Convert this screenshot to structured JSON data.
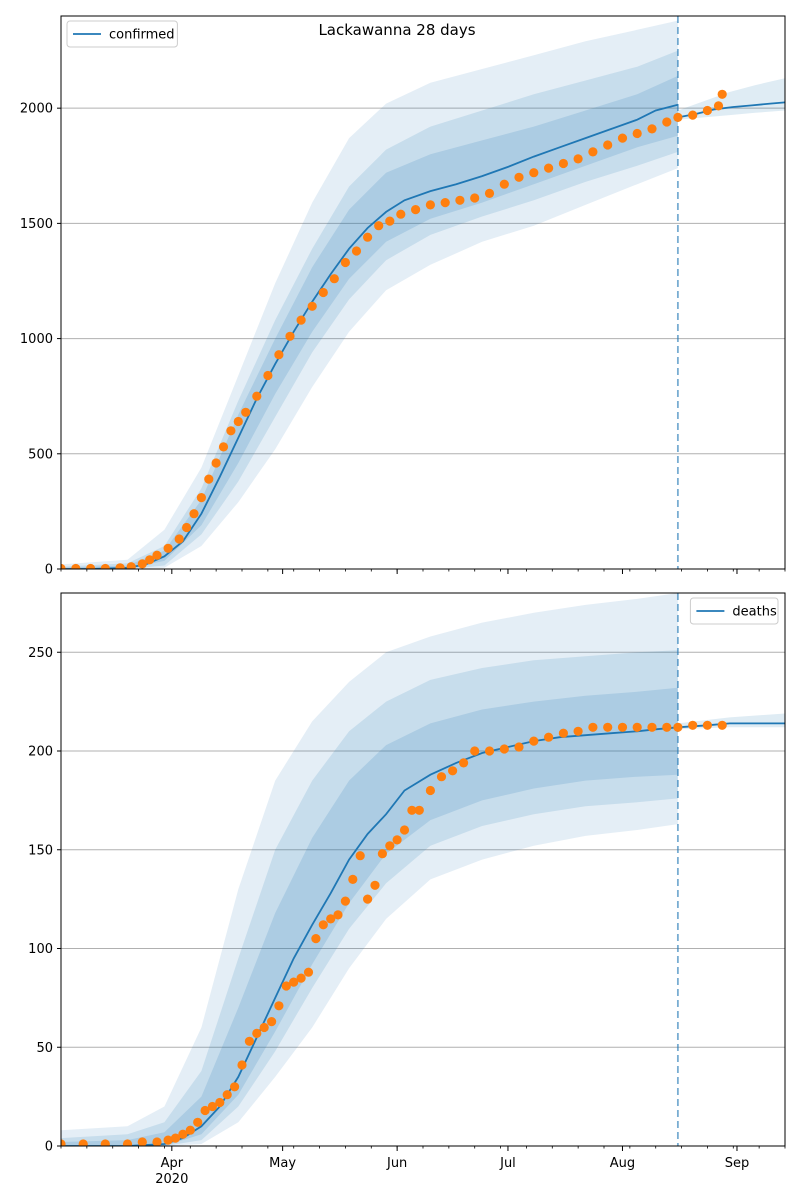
{
  "figure": {
    "title": "Lackawanna 28 days"
  },
  "chart_data": [
    {
      "type": "line",
      "title": "Lackawanna 28 days",
      "legend": {
        "entries": [
          "confirmed"
        ],
        "placement": "top-left"
      },
      "x_range": [
        "2020-03-02",
        "2020-09-14"
      ],
      "x_ticks": [
        {
          "date": "2020-04-01",
          "label": "Apr",
          "sublabel": "2020"
        },
        {
          "date": "2020-05-01",
          "label": "May",
          "sublabel": ""
        },
        {
          "date": "2020-06-01",
          "label": "Jun",
          "sublabel": ""
        },
        {
          "date": "2020-07-01",
          "label": "Jul",
          "sublabel": ""
        },
        {
          "date": "2020-08-01",
          "label": "Aug",
          "sublabel": ""
        },
        {
          "date": "2020-09-01",
          "label": "Sep",
          "sublabel": ""
        }
      ],
      "x_tick_labels_visible": false,
      "ylim": [
        0,
        2400
      ],
      "yticks": [
        0,
        500,
        1000,
        1500,
        2000
      ],
      "grid": "y",
      "forecast_start": "2020-08-16",
      "colors": {
        "line": "#1f77b4",
        "points": "#ff7f0e",
        "band": "#1f77b4"
      },
      "series": [
        {
          "name": "confirmed",
          "kind": "line",
          "dates": [
            "2020-03-02",
            "2020-03-10",
            "2020-03-20",
            "2020-03-25",
            "2020-03-30",
            "2020-04-04",
            "2020-04-09",
            "2020-04-14",
            "2020-04-19",
            "2020-04-24",
            "2020-04-29",
            "2020-05-04",
            "2020-05-09",
            "2020-05-14",
            "2020-05-19",
            "2020-05-24",
            "2020-05-29",
            "2020-06-03",
            "2020-06-10",
            "2020-06-17",
            "2020-06-24",
            "2020-07-01",
            "2020-07-08",
            "2020-07-15",
            "2020-07-22",
            "2020-07-29",
            "2020-08-05",
            "2020-08-10",
            "2020-08-16"
          ],
          "values": [
            0,
            0,
            5,
            20,
            55,
            120,
            240,
            400,
            570,
            740,
            890,
            1030,
            1160,
            1280,
            1390,
            1480,
            1550,
            1600,
            1640,
            1670,
            1705,
            1745,
            1790,
            1830,
            1870,
            1910,
            1950,
            1990,
            2015
          ]
        },
        {
          "name": "forecast",
          "kind": "line",
          "dates": [
            "2020-08-16",
            "2020-08-21",
            "2020-08-26",
            "2020-08-31",
            "2020-09-05",
            "2020-09-10",
            "2020-09-14"
          ],
          "values": [
            1960,
            1975,
            1995,
            2005,
            2012,
            2020,
            2025
          ]
        },
        {
          "name": "observed",
          "kind": "scatter",
          "dates": [
            "2020-03-02",
            "2020-03-06",
            "2020-03-10",
            "2020-03-14",
            "2020-03-18",
            "2020-03-21",
            "2020-03-24",
            "2020-03-26",
            "2020-03-28",
            "2020-03-31",
            "2020-04-03",
            "2020-04-05",
            "2020-04-07",
            "2020-04-09",
            "2020-04-11",
            "2020-04-13",
            "2020-04-15",
            "2020-04-17",
            "2020-04-19",
            "2020-04-21",
            "2020-04-24",
            "2020-04-27",
            "2020-04-30",
            "2020-05-03",
            "2020-05-06",
            "2020-05-09",
            "2020-05-12",
            "2020-05-15",
            "2020-05-18",
            "2020-05-21",
            "2020-05-24",
            "2020-05-27",
            "2020-05-30",
            "2020-06-02",
            "2020-06-06",
            "2020-06-10",
            "2020-06-14",
            "2020-06-18",
            "2020-06-22",
            "2020-06-26",
            "2020-06-30",
            "2020-07-04",
            "2020-07-08",
            "2020-07-12",
            "2020-07-16",
            "2020-07-20",
            "2020-07-24",
            "2020-07-28",
            "2020-08-01",
            "2020-08-05",
            "2020-08-09",
            "2020-08-13",
            "2020-08-16",
            "2020-08-20",
            "2020-08-24",
            "2020-08-27",
            "2020-08-28"
          ],
          "values": [
            2,
            2,
            2,
            2,
            5,
            10,
            22,
            40,
            60,
            90,
            130,
            180,
            240,
            310,
            390,
            460,
            530,
            600,
            640,
            680,
            750,
            840,
            930,
            1010,
            1080,
            1140,
            1200,
            1260,
            1330,
            1380,
            1440,
            1490,
            1510,
            1540,
            1560,
            1580,
            1590,
            1600,
            1610,
            1630,
            1670,
            1700,
            1720,
            1740,
            1760,
            1780,
            1810,
            1840,
            1870,
            1890,
            1910,
            1940,
            1960,
            1970,
            1990,
            2010,
            2060
          ]
        }
      ],
      "bands": {
        "dates": [
          "2020-03-02",
          "2020-03-20",
          "2020-03-30",
          "2020-04-09",
          "2020-04-19",
          "2020-04-29",
          "2020-05-09",
          "2020-05-19",
          "2020-05-29",
          "2020-06-10",
          "2020-06-24",
          "2020-07-08",
          "2020-07-22",
          "2020-08-05",
          "2020-08-16"
        ],
        "outer_low": [
          0,
          0,
          5,
          100,
          290,
          520,
          790,
          1030,
          1210,
          1320,
          1420,
          1490,
          1580,
          1670,
          1740
        ],
        "outer_high": [
          20,
          40,
          170,
          440,
          840,
          1240,
          1590,
          1870,
          2020,
          2110,
          2170,
          2230,
          2290,
          2340,
          2380
        ],
        "mid_low": [
          0,
          0,
          15,
          150,
          380,
          660,
          940,
          1170,
          1340,
          1450,
          1530,
          1600,
          1680,
          1750,
          1810
        ],
        "mid_high": [
          10,
          25,
          100,
          350,
          730,
          1080,
          1390,
          1660,
          1820,
          1920,
          1990,
          2060,
          2120,
          2180,
          2250
        ],
        "inner_low": [
          0,
          2,
          35,
          190,
          460,
          760,
          1030,
          1260,
          1420,
          1520,
          1590,
          1670,
          1750,
          1830,
          1880
        ],
        "inner_high": [
          5,
          15,
          80,
          300,
          670,
          1000,
          1310,
          1560,
          1720,
          1800,
          1860,
          1920,
          1990,
          2060,
          2140
        ]
      },
      "forecast_bands": {
        "dates": [
          "2020-08-16",
          "2020-08-23",
          "2020-08-30",
          "2020-09-06",
          "2020-09-14"
        ],
        "low": [
          1950,
          1960,
          1970,
          1980,
          1990
        ],
        "high": [
          1990,
          2030,
          2070,
          2100,
          2130
        ]
      }
    },
    {
      "type": "line",
      "title": "",
      "legend": {
        "entries": [
          "deaths"
        ],
        "placement": "top-right"
      },
      "x_range": [
        "2020-03-02",
        "2020-09-14"
      ],
      "x_ticks": [
        {
          "date": "2020-04-01",
          "label": "Apr",
          "sublabel": "2020"
        },
        {
          "date": "2020-05-01",
          "label": "May",
          "sublabel": ""
        },
        {
          "date": "2020-06-01",
          "label": "Jun",
          "sublabel": ""
        },
        {
          "date": "2020-07-01",
          "label": "Jul",
          "sublabel": ""
        },
        {
          "date": "2020-08-01",
          "label": "Aug",
          "sublabel": ""
        },
        {
          "date": "2020-09-01",
          "label": "Sep",
          "sublabel": ""
        }
      ],
      "x_tick_labels_visible": true,
      "ylim": [
        0,
        280
      ],
      "yticks": [
        0,
        50,
        100,
        150,
        200,
        250
      ],
      "grid": "y",
      "forecast_start": "2020-08-16",
      "colors": {
        "line": "#1f77b4",
        "points": "#ff7f0e",
        "band": "#1f77b4"
      },
      "series": [
        {
          "name": "deaths",
          "kind": "line",
          "dates": [
            "2020-03-02",
            "2020-03-20",
            "2020-03-30",
            "2020-04-04",
            "2020-04-09",
            "2020-04-14",
            "2020-04-19",
            "2020-04-24",
            "2020-04-29",
            "2020-05-04",
            "2020-05-09",
            "2020-05-14",
            "2020-05-19",
            "2020-05-24",
            "2020-05-29",
            "2020-06-03",
            "2020-06-10",
            "2020-06-17",
            "2020-06-24",
            "2020-07-01",
            "2020-07-08",
            "2020-07-15",
            "2020-07-22",
            "2020-07-29",
            "2020-08-05",
            "2020-08-10",
            "2020-08-16"
          ],
          "values": [
            0,
            0,
            1,
            4,
            10,
            20,
            35,
            55,
            75,
            95,
            112,
            128,
            145,
            158,
            168,
            180,
            188,
            194,
            199,
            202,
            205,
            207,
            208,
            209,
            210,
            211,
            212
          ]
        },
        {
          "name": "forecast",
          "kind": "line",
          "dates": [
            "2020-08-16",
            "2020-08-24",
            "2020-08-30",
            "2020-09-14"
          ],
          "values": [
            212,
            213,
            214,
            214
          ]
        },
        {
          "name": "observed",
          "kind": "scatter",
          "dates": [
            "2020-03-02",
            "2020-03-08",
            "2020-03-14",
            "2020-03-20",
            "2020-03-24",
            "2020-03-28",
            "2020-03-31",
            "2020-04-02",
            "2020-04-04",
            "2020-04-06",
            "2020-04-08",
            "2020-04-10",
            "2020-04-12",
            "2020-04-14",
            "2020-04-16",
            "2020-04-18",
            "2020-04-20",
            "2020-04-22",
            "2020-04-24",
            "2020-04-26",
            "2020-04-28",
            "2020-04-30",
            "2020-05-02",
            "2020-05-04",
            "2020-05-06",
            "2020-05-08",
            "2020-05-10",
            "2020-05-12",
            "2020-05-14",
            "2020-05-16",
            "2020-05-18",
            "2020-05-20",
            "2020-05-22",
            "2020-05-24",
            "2020-05-26",
            "2020-05-28",
            "2020-05-30",
            "2020-06-01",
            "2020-06-03",
            "2020-06-05",
            "2020-06-07",
            "2020-06-10",
            "2020-06-13",
            "2020-06-16",
            "2020-06-19",
            "2020-06-22",
            "2020-06-26",
            "2020-06-30",
            "2020-07-04",
            "2020-07-08",
            "2020-07-12",
            "2020-07-16",
            "2020-07-20",
            "2020-07-24",
            "2020-07-28",
            "2020-08-01",
            "2020-08-05",
            "2020-08-09",
            "2020-08-13",
            "2020-08-16",
            "2020-08-20",
            "2020-08-24",
            "2020-08-28"
          ],
          "values": [
            1,
            1,
            1,
            1,
            2,
            2,
            3,
            4,
            6,
            8,
            12,
            18,
            20,
            22,
            26,
            30,
            41,
            53,
            57,
            60,
            63,
            71,
            81,
            83,
            85,
            88,
            105,
            112,
            115,
            117,
            124,
            135,
            147,
            125,
            132,
            148,
            152,
            155,
            160,
            170,
            170,
            180,
            187,
            190,
            194,
            200,
            200,
            201,
            202,
            205,
            207,
            209,
            210,
            212,
            212,
            212,
            212,
            212,
            212,
            212,
            213,
            213,
            213
          ]
        }
      ],
      "bands": {
        "dates": [
          "2020-03-02",
          "2020-03-20",
          "2020-03-30",
          "2020-04-09",
          "2020-04-19",
          "2020-04-29",
          "2020-05-09",
          "2020-05-19",
          "2020-05-29",
          "2020-06-10",
          "2020-06-24",
          "2020-07-08",
          "2020-07-22",
          "2020-08-05",
          "2020-08-16"
        ],
        "outer_low": [
          0,
          0,
          0,
          1,
          12,
          35,
          60,
          90,
          115,
          135,
          145,
          152,
          157,
          160,
          163
        ],
        "outer_high": [
          8,
          10,
          20,
          60,
          130,
          185,
          215,
          235,
          250,
          258,
          265,
          270,
          274,
          277,
          280
        ],
        "mid_low": [
          0,
          0,
          0,
          3,
          20,
          48,
          80,
          110,
          133,
          152,
          162,
          168,
          172,
          174,
          176
        ],
        "mid_high": [
          4,
          6,
          12,
          38,
          95,
          150,
          185,
          210,
          225,
          236,
          242,
          246,
          248,
          250,
          251
        ],
        "inner_low": [
          0,
          0,
          0,
          6,
          26,
          58,
          92,
          123,
          148,
          165,
          175,
          181,
          185,
          187,
          188
        ],
        "inner_high": [
          2,
          3,
          7,
          25,
          70,
          118,
          156,
          185,
          203,
          214,
          221,
          225,
          228,
          230,
          232
        ]
      },
      "forecast_bands": {
        "dates": [
          "2020-08-16",
          "2020-08-30",
          "2020-09-14"
        ],
        "low": [
          211,
          212,
          212
        ],
        "high": [
          214,
          217,
          219
        ]
      }
    }
  ]
}
